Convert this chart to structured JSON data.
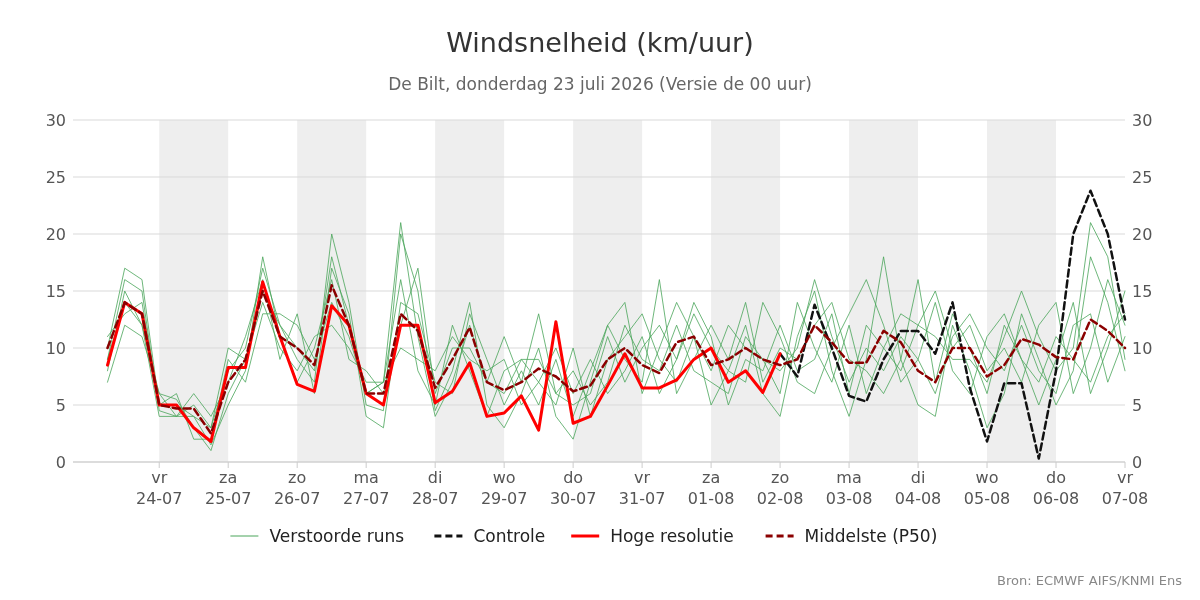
{
  "chart_data": {
    "type": "line",
    "title": "Windsnelheid (km/uur)",
    "subtitle": "De Bilt, donderdag 23 juli 2026 (Versie de 00 uur)",
    "x": [
      "2026-07-23T06:00",
      "2026-07-23T12:00",
      "2026-07-23T18:00",
      "2026-07-24T00:00",
      "2026-07-24T06:00",
      "2026-07-24T12:00",
      "2026-07-24T18:00",
      "2026-07-25T00:00",
      "2026-07-25T06:00",
      "2026-07-25T12:00",
      "2026-07-25T18:00",
      "2026-07-26T00:00",
      "2026-07-26T06:00",
      "2026-07-26T12:00",
      "2026-07-26T18:00",
      "2026-07-27T00:00",
      "2026-07-27T06:00",
      "2026-07-27T12:00",
      "2026-07-27T18:00",
      "2026-07-28T00:00",
      "2026-07-28T06:00",
      "2026-07-28T12:00",
      "2026-07-28T18:00",
      "2026-07-29T00:00",
      "2026-07-29T06:00",
      "2026-07-29T12:00",
      "2026-07-29T18:00",
      "2026-07-30T00:00",
      "2026-07-30T06:00",
      "2026-07-30T12:00",
      "2026-07-30T18:00",
      "2026-07-31T00:00",
      "2026-07-31T06:00",
      "2026-07-31T12:00",
      "2026-07-31T18:00",
      "2026-08-01T00:00",
      "2026-08-01T06:00",
      "2026-08-01T12:00",
      "2026-08-01T18:00",
      "2026-08-02T00:00",
      "2026-08-02T06:00",
      "2026-08-02T12:00",
      "2026-08-02T18:00",
      "2026-08-03T00:00",
      "2026-08-03T06:00",
      "2026-08-03T12:00",
      "2026-08-03T18:00",
      "2026-08-04T00:00",
      "2026-08-04T06:00",
      "2026-08-04T12:00",
      "2026-08-04T18:00",
      "2026-08-05T00:00",
      "2026-08-05T06:00",
      "2026-08-05T12:00",
      "2026-08-05T18:00",
      "2026-08-06T00:00",
      "2026-08-06T06:00",
      "2026-08-06T12:00",
      "2026-08-06T18:00",
      "2026-08-07T00:00"
    ],
    "series": [
      {
        "name": "Verstoorde runs",
        "color": "#4aa55a",
        "line_style": "solid",
        "values": [
          9,
          16,
          15,
          4.5,
          4,
          5,
          3,
          8,
          10,
          17,
          12,
          9,
          7,
          20,
          14,
          5,
          4.5,
          20,
          15,
          4.5,
          8,
          14,
          5,
          3,
          6,
          10,
          4,
          2,
          7,
          12,
          14,
          6,
          10,
          14,
          11,
          5,
          8,
          12,
          6,
          4,
          11,
          15,
          8,
          4,
          9,
          18,
          9,
          5,
          4,
          12,
          8,
          3,
          6,
          13,
          9,
          5,
          8,
          18,
          14,
          8
        ]
      },
      {
        "color": "#4aa55a",
        "line_style": "solid",
        "values": [
          7,
          12,
          11,
          6,
          5.5,
          3,
          1,
          6,
          9,
          14,
          10,
          8,
          11,
          12,
          10,
          7,
          7,
          10,
          9,
          8,
          11,
          9,
          8,
          9,
          5,
          7,
          10,
          6,
          9,
          6,
          8,
          11,
          6,
          9,
          13,
          10,
          8,
          7,
          14,
          11,
          7,
          6,
          10,
          13,
          16,
          12,
          7,
          9,
          14,
          8,
          6,
          11,
          13,
          9,
          7,
          11,
          9,
          7,
          11,
          13
        ]
      },
      {
        "color": "#4aa55a",
        "line_style": "solid",
        "values": [
          11,
          13,
          14,
          5,
          6,
          2,
          2,
          9,
          7,
          13,
          13,
          12,
          9,
          14,
          11,
          6,
          7,
          16,
          8,
          5,
          12,
          8,
          4,
          8,
          9,
          7,
          5,
          10,
          4,
          9,
          11,
          13,
          9,
          7,
          11,
          8,
          12,
          10,
          9,
          6,
          14,
          10,
          7,
          12,
          6,
          10,
          13,
          12,
          15,
          10,
          12,
          8,
          10,
          7,
          12,
          14,
          6,
          10,
          16,
          12
        ]
      },
      {
        "color": "#4aa55a",
        "line_style": "solid",
        "values": [
          8,
          15,
          12,
          4,
          4,
          6,
          4,
          7,
          11,
          16,
          9,
          13,
          6,
          17,
          13,
          4,
          3,
          14,
          13,
          7,
          6,
          13,
          9,
          5,
          8,
          5,
          9,
          4,
          8,
          12,
          9,
          7,
          16,
          6,
          9,
          12,
          9,
          14,
          7,
          10,
          9,
          12,
          14,
          9,
          8,
          6,
          9,
          16,
          7,
          13,
          10,
          6,
          12,
          9,
          5,
          9,
          14,
          6,
          10,
          15
        ]
      },
      {
        "color": "#4aa55a",
        "line_style": "solid",
        "values": [
          10,
          17,
          16,
          5,
          5,
          4,
          1.5,
          5,
          8,
          18,
          11,
          7,
          10,
          16,
          9,
          8,
          6,
          12,
          17,
          6,
          10,
          10,
          7,
          11,
          7,
          13,
          6,
          8,
          5,
          7,
          12,
          9,
          8,
          12,
          8,
          7,
          6,
          11,
          9,
          8,
          10,
          16,
          11,
          7,
          10,
          8,
          11,
          9,
          6,
          11,
          13,
          10,
          8,
          12,
          8,
          6,
          12,
          13,
          7,
          11
        ]
      },
      {
        "color": "#4aa55a",
        "line_style": "solid",
        "values": [
          9,
          14,
          12,
          6,
          4,
          4,
          3,
          10,
          9,
          15,
          12,
          10,
          8,
          18,
          12,
          6,
          7,
          21,
          11,
          4,
          7,
          12,
          7,
          6,
          9,
          9,
          6,
          5,
          6,
          11,
          7,
          10,
          12,
          9,
          14,
          11,
          5,
          9,
          8,
          12,
          8,
          9,
          13,
          6,
          12,
          10,
          8,
          12,
          11,
          9,
          9,
          7,
          11,
          15,
          11,
          8,
          10,
          21,
          18,
          9
        ]
      },
      {
        "name": "Controle",
        "color": "#111111",
        "line_style": "dashed",
        "x": [
          "2026-08-02T00:00",
          "2026-08-02T06:00",
          "2026-08-02T12:00",
          "2026-08-02T18:00",
          "2026-08-03T00:00",
          "2026-08-03T06:00",
          "2026-08-03T12:00",
          "2026-08-03T18:00",
          "2026-08-04T00:00",
          "2026-08-04T06:00",
          "2026-08-04T12:00",
          "2026-08-04T18:00",
          "2026-08-05T00:00",
          "2026-08-05T06:00",
          "2026-08-05T12:00",
          "2026-08-05T18:00",
          "2026-08-06T00:00",
          "2026-08-06T06:00",
          "2026-08-06T12:00",
          "2026-08-06T18:00",
          "2026-08-07T00:00"
        ],
        "values": [
          9.5,
          7.5,
          13.8,
          10,
          5.8,
          5.3,
          9,
          11.5,
          11.5,
          9.5,
          14,
          6.5,
          1.8,
          6.9,
          6.9,
          0.3,
          8,
          20,
          23.8,
          20,
          12.5
        ]
      },
      {
        "name": "Hoge resolutie",
        "color": "#ff0000",
        "line_style": "solid",
        "x": [
          "2026-07-23T06:00",
          "2026-07-23T12:00",
          "2026-07-23T18:00",
          "2026-07-24T00:00",
          "2026-07-24T06:00",
          "2026-07-24T12:00",
          "2026-07-24T18:00",
          "2026-07-25T00:00",
          "2026-07-25T06:00",
          "2026-07-25T12:00",
          "2026-07-25T18:00",
          "2026-07-26T00:00",
          "2026-07-26T06:00",
          "2026-07-26T12:00",
          "2026-07-26T18:00",
          "2026-07-27T00:00",
          "2026-07-27T06:00",
          "2026-07-27T12:00",
          "2026-07-27T18:00",
          "2026-07-28T00:00",
          "2026-07-28T06:00",
          "2026-07-28T12:00",
          "2026-07-28T18:00",
          "2026-07-29T00:00",
          "2026-07-29T06:00",
          "2026-07-29T12:00",
          "2026-07-29T18:00",
          "2026-07-30T00:00",
          "2026-07-30T06:00",
          "2026-07-30T12:00",
          "2026-07-30T18:00",
          "2026-07-31T00:00",
          "2026-07-31T06:00",
          "2026-07-31T12:00",
          "2026-07-31T18:00",
          "2026-08-01T00:00",
          "2026-08-01T06:00",
          "2026-08-01T12:00",
          "2026-08-01T18:00",
          "2026-08-02T00:00"
        ],
        "values": [
          8.5,
          14,
          13,
          5,
          5,
          3,
          1.8,
          8.3,
          8.3,
          15.8,
          11,
          6.8,
          6.2,
          13.7,
          12,
          6,
          5,
          12,
          12,
          5.2,
          6.2,
          8.7,
          4,
          4.3,
          5.8,
          2.8,
          12.3,
          3.4,
          4,
          6.7,
          9.5,
          6.5,
          6.5,
          7.2,
          9,
          10,
          7,
          8,
          6.1,
          9.5
        ]
      },
      {
        "name": "Middelste (P50)",
        "color": "#8b0000",
        "line_style": "dashed",
        "values": [
          10,
          14,
          13,
          5,
          4.7,
          4.7,
          2.5,
          7,
          9,
          15,
          11,
          10,
          8.5,
          15.5,
          12,
          6,
          6,
          13,
          11.5,
          6.5,
          9,
          11.8,
          7,
          6.3,
          7,
          8.2,
          7.5,
          6.2,
          6.7,
          9,
          10,
          8.5,
          7.8,
          10.5,
          11,
          8.5,
          9,
          10,
          9,
          8.5,
          9,
          12,
          10.5,
          8.7,
          8.7,
          11.5,
          10.5,
          8,
          7,
          10,
          10,
          7.5,
          8.5,
          10.8,
          10.3,
          9.2,
          9,
          12.5,
          11.5,
          10
        ]
      }
    ],
    "xlim": [
      "2026-07-22T18:00",
      "2026-08-07T00:00"
    ],
    "xticks": [
      {
        "value": "2026-07-24",
        "label": "vr\n24-07"
      },
      {
        "value": "2026-07-25",
        "label": "za\n25-07"
      },
      {
        "value": "2026-07-26",
        "label": "zo\n26-07"
      },
      {
        "value": "2026-07-27",
        "label": "ma\n27-07"
      },
      {
        "value": "2026-07-28",
        "label": "di\n28-07"
      },
      {
        "value": "2026-07-29",
        "label": "wo\n29-07"
      },
      {
        "value": "2026-07-30",
        "label": "do\n30-07"
      },
      {
        "value": "2026-07-31",
        "label": "vr\n31-07"
      },
      {
        "value": "2026-08-01",
        "label": "za\n01-08"
      },
      {
        "value": "2026-08-02",
        "label": "zo\n02-08"
      },
      {
        "value": "2026-08-03",
        "label": "ma\n03-08"
      },
      {
        "value": "2026-08-04",
        "label": "di\n04-08"
      },
      {
        "value": "2026-08-05",
        "label": "wo\n05-08"
      },
      {
        "value": "2026-08-06",
        "label": "do\n06-08"
      },
      {
        "value": "2026-08-07",
        "label": "vr\n07-08"
      }
    ],
    "ylim": [
      0,
      30
    ],
    "yticks": [
      0,
      5,
      10,
      15,
      20,
      25,
      30
    ],
    "y2lim": [
      0,
      30
    ],
    "y2ticks": [
      0,
      5,
      10,
      15,
      20,
      25,
      30
    ],
    "bands": [
      {
        "axis": "x",
        "from": "2026-07-24",
        "to": "2026-07-25",
        "color": "#eeeeee"
      },
      {
        "axis": "x",
        "from": "2026-07-26",
        "to": "2026-07-27",
        "color": "#eeeeee"
      },
      {
        "axis": "x",
        "from": "2026-07-28",
        "to": "2026-07-29",
        "color": "#eeeeee"
      },
      {
        "axis": "x",
        "from": "2026-07-30",
        "to": "2026-07-31",
        "color": "#eeeeee"
      },
      {
        "axis": "x",
        "from": "2026-08-01",
        "to": "2026-08-02",
        "color": "#eeeeee"
      },
      {
        "axis": "x",
        "from": "2026-08-03",
        "to": "2026-08-04",
        "color": "#eeeeee"
      },
      {
        "axis": "x",
        "from": "2026-08-05",
        "to": "2026-08-06",
        "color": "#eeeeee"
      }
    ],
    "grid": "y",
    "legend": "bottom",
    "marker": "none",
    "annotations": [
      "Bron: ECMWF AIFS/KNMI Ens"
    ]
  }
}
